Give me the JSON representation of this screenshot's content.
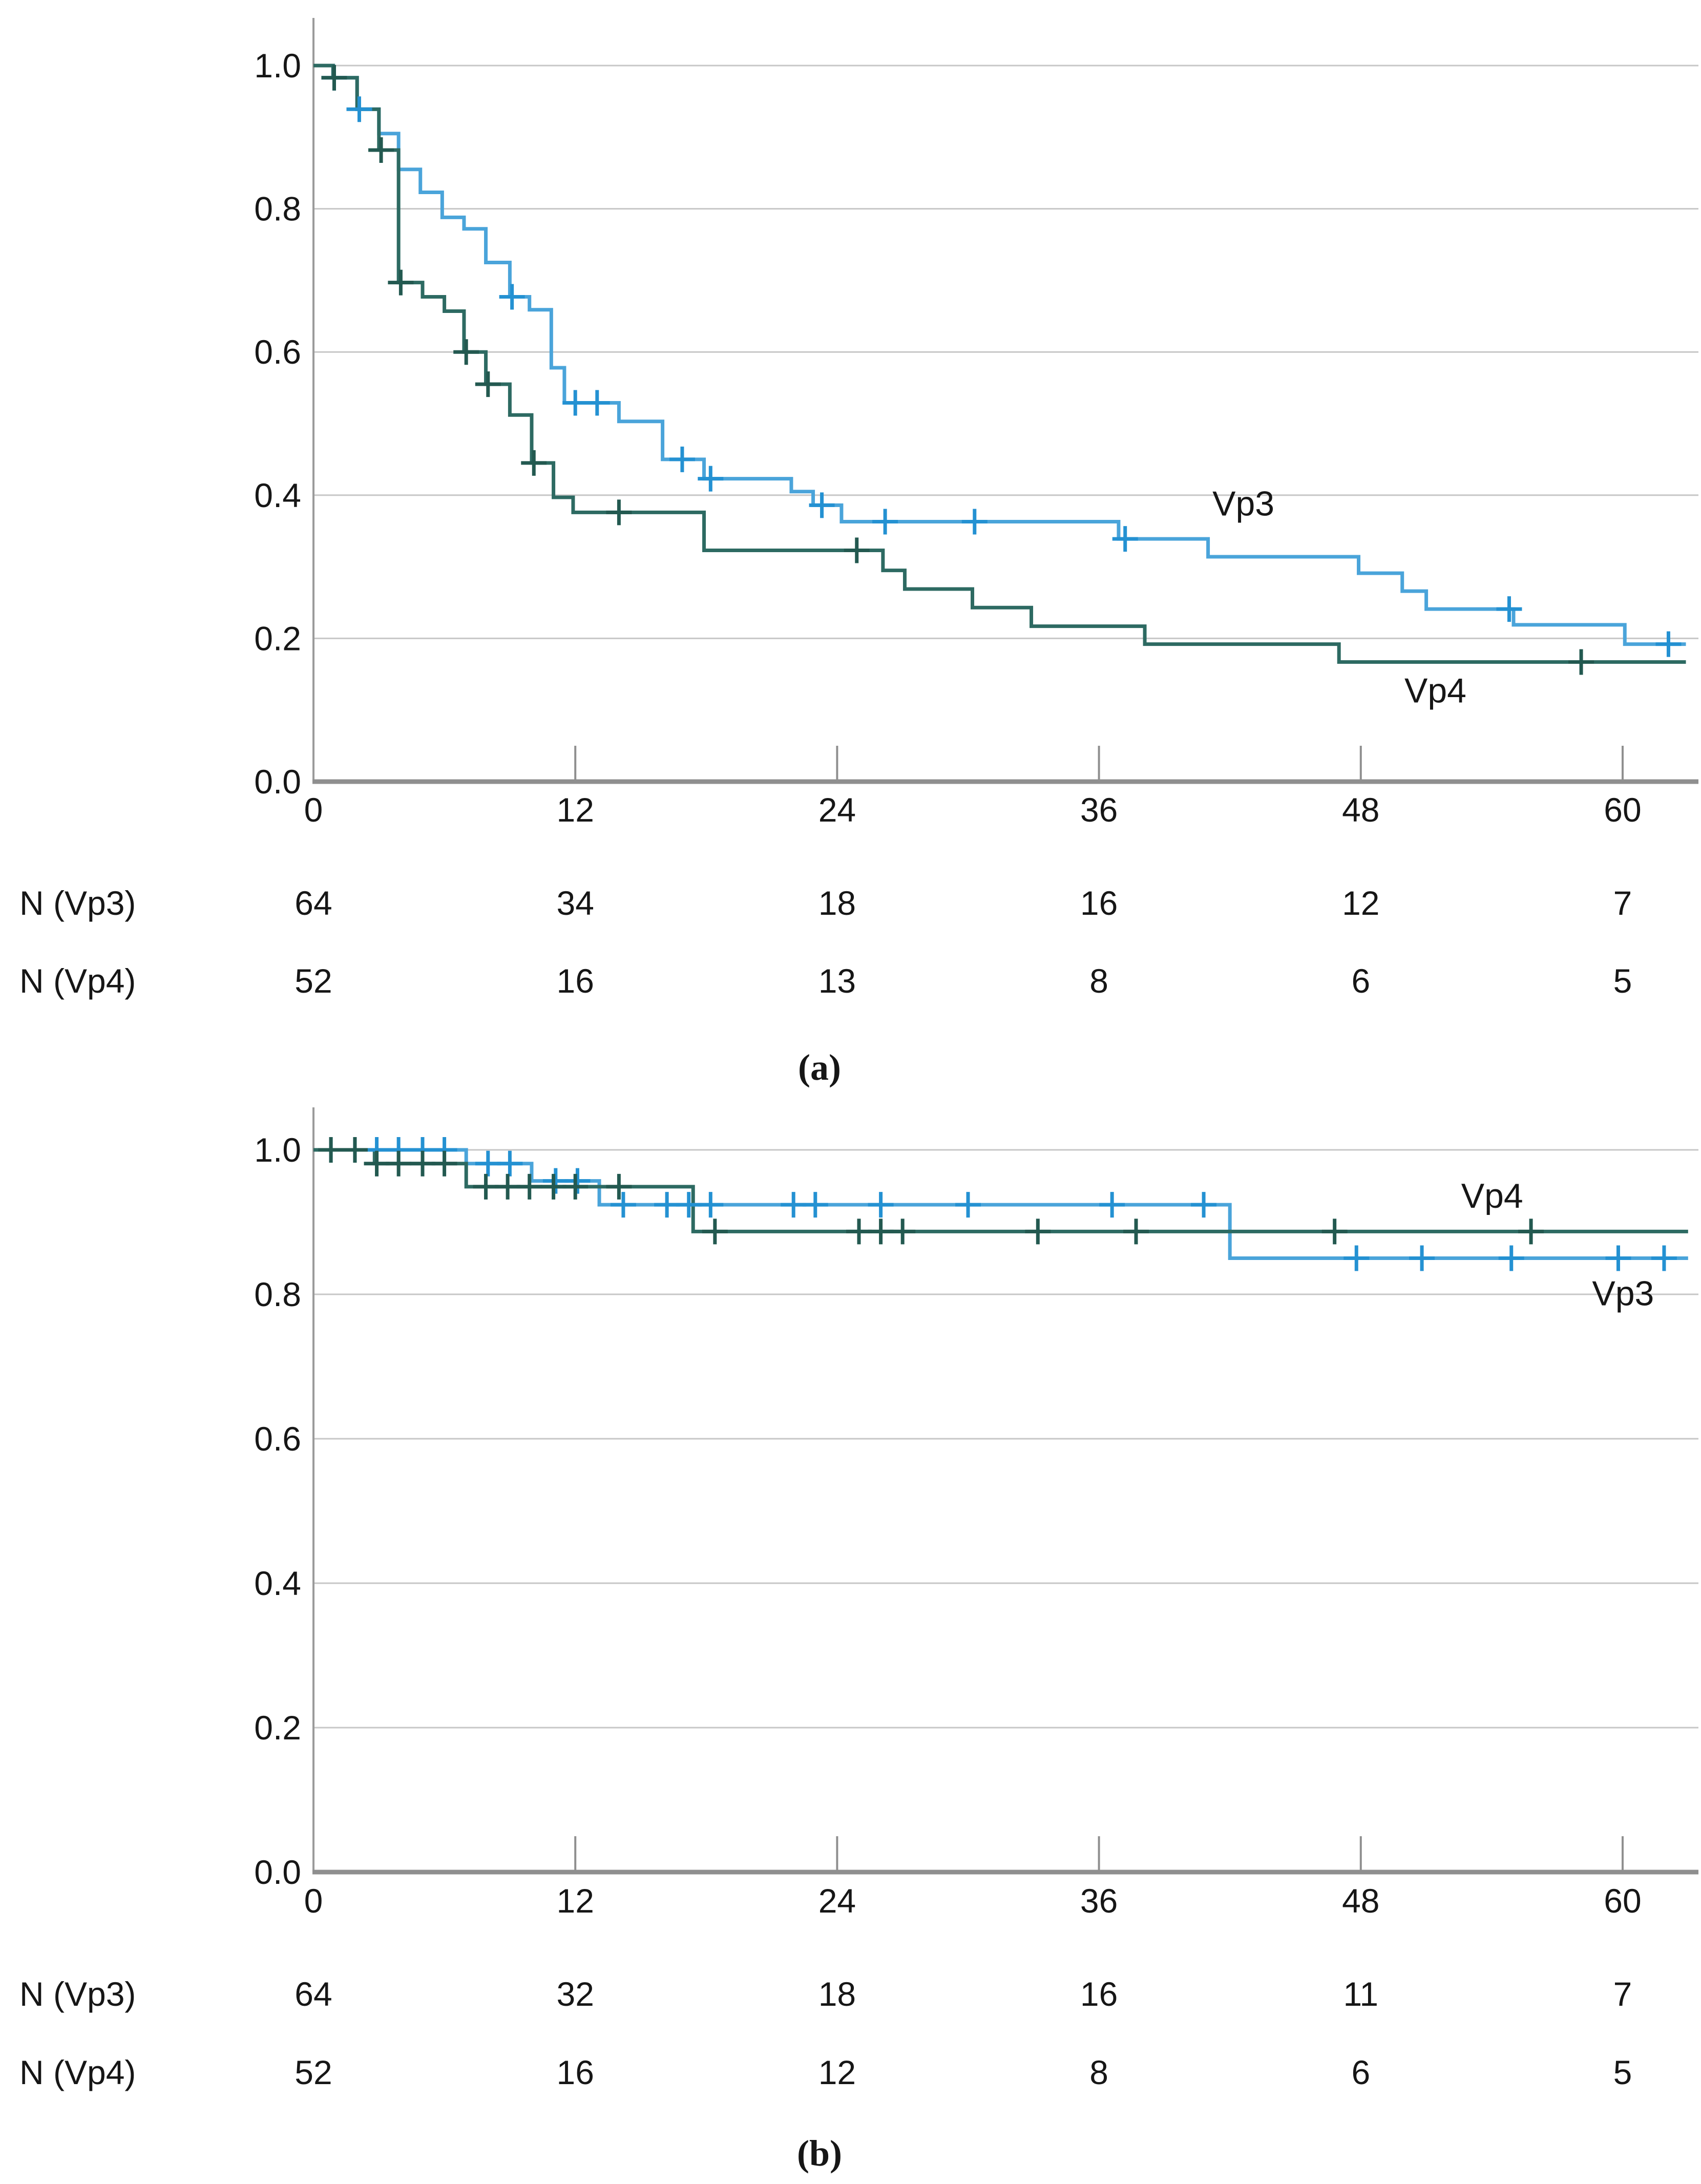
{
  "figure_caption_a": "(a)",
  "figure_caption_b": "(b)",
  "chart_data": [
    {
      "panel": "a",
      "type": "line",
      "subtype": "kaplan-meier-step",
      "caption": "(a)",
      "title": "",
      "xlabel": "",
      "ylabel": "",
      "xlim": [
        0,
        63
      ],
      "ylim": [
        0.0,
        1.0
      ],
      "grid": "horizontal",
      "x_ticks": [
        {
          "label": "0",
          "value": 0
        },
        {
          "label": "12",
          "value": 12
        },
        {
          "label": "24",
          "value": 24
        },
        {
          "label": "36",
          "value": 36
        },
        {
          "label": "48",
          "value": 48
        },
        {
          "label": "60",
          "value": 60
        }
      ],
      "y_ticks": [
        {
          "label": "1.0",
          "value": 1.0
        },
        {
          "label": "0.8",
          "value": 0.8
        },
        {
          "label": "0.6",
          "value": 0.6
        },
        {
          "label": "0.4",
          "value": 0.4
        },
        {
          "label": "0.2",
          "value": 0.2
        },
        {
          "label": "0.0",
          "value": 0.0
        }
      ],
      "series": [
        {
          "name": "Vp3",
          "color": "#4aa4da",
          "censor_color": "#2491d2",
          "end_month": 62.9,
          "label": {
            "text": "Vp3",
            "month": 41.2,
            "value": 0.388
          },
          "steps": [
            [
              0,
              1.0
            ],
            [
              0.9,
              0.983
            ],
            [
              2.0,
              0.939
            ],
            [
              3.0,
              0.905
            ],
            [
              3.9,
              0.855
            ],
            [
              4.9,
              0.823
            ],
            [
              5.9,
              0.788
            ],
            [
              6.9,
              0.772
            ],
            [
              7.9,
              0.725
            ],
            [
              9.0,
              0.677
            ],
            [
              9.9,
              0.659
            ],
            [
              10.9,
              0.578
            ],
            [
              11.5,
              0.529
            ],
            [
              14.0,
              0.503
            ],
            [
              16.0,
              0.45
            ],
            [
              17.9,
              0.423
            ],
            [
              21.9,
              0.405
            ],
            [
              22.9,
              0.386
            ],
            [
              24.2,
              0.363
            ],
            [
              36.9,
              0.339
            ],
            [
              41.0,
              0.314
            ],
            [
              47.9,
              0.291
            ],
            [
              49.9,
              0.266
            ],
            [
              51.0,
              0.241
            ],
            [
              55.0,
              0.219
            ],
            [
              60.1,
              0.192
            ]
          ],
          "censors": [
            [
              0.95,
              0.983
            ],
            [
              2.1,
              0.939
            ],
            [
              9.1,
              0.677
            ],
            [
              12.0,
              0.529
            ],
            [
              13.0,
              0.529
            ],
            [
              16.9,
              0.45
            ],
            [
              18.2,
              0.423
            ],
            [
              23.3,
              0.386
            ],
            [
              26.2,
              0.363
            ],
            [
              30.3,
              0.363
            ],
            [
              37.2,
              0.339
            ],
            [
              54.8,
              0.241
            ],
            [
              62.1,
              0.192
            ]
          ]
        },
        {
          "name": "Vp4",
          "color": "#2d6a62",
          "censor_color": "#235950",
          "end_month": 62.9,
          "label": {
            "text": "Vp4",
            "month": 50.0,
            "value": 0.127
          },
          "steps": [
            [
              0,
              1.0
            ],
            [
              0.9,
              0.983
            ],
            [
              2.0,
              0.939
            ],
            [
              3.0,
              0.882
            ],
            [
              3.9,
              0.697
            ],
            [
              5.0,
              0.677
            ],
            [
              6.0,
              0.657
            ],
            [
              6.9,
              0.6
            ],
            [
              7.9,
              0.555
            ],
            [
              9.0,
              0.512
            ],
            [
              10.0,
              0.445
            ],
            [
              11.0,
              0.397
            ],
            [
              11.9,
              0.376
            ],
            [
              17.9,
              0.323
            ],
            [
              26.1,
              0.295
            ],
            [
              27.1,
              0.269
            ],
            [
              30.2,
              0.243
            ],
            [
              32.9,
              0.217
            ],
            [
              38.1,
              0.192
            ],
            [
              47.0,
              0.167
            ]
          ],
          "censors": [
            [
              0.95,
              0.983
            ],
            [
              3.1,
              0.882
            ],
            [
              4.0,
              0.697
            ],
            [
              7.0,
              0.6
            ],
            [
              8.0,
              0.555
            ],
            [
              10.1,
              0.445
            ],
            [
              14.0,
              0.376
            ],
            [
              24.9,
              0.323
            ],
            [
              58.1,
              0.167
            ]
          ]
        }
      ],
      "risk_table": {
        "rows": [
          {
            "label": "N (Vp3)",
            "values": [
              "64",
              "34",
              "18",
              "16",
              "12",
              "7"
            ]
          },
          {
            "label": "N (Vp4)",
            "values": [
              "52",
              "16",
              "13",
              "8",
              "6",
              "5"
            ]
          }
        ]
      }
    },
    {
      "panel": "b",
      "type": "line",
      "subtype": "kaplan-meier-step",
      "caption": "(b)",
      "title": "",
      "xlabel": "",
      "ylabel": "",
      "xlim": [
        0,
        63
      ],
      "ylim": [
        0.0,
        1.0
      ],
      "grid": "horizontal",
      "x_ticks": [
        {
          "label": "0",
          "value": 0
        },
        {
          "label": "12",
          "value": 12
        },
        {
          "label": "24",
          "value": 24
        },
        {
          "label": "36",
          "value": 36
        },
        {
          "label": "48",
          "value": 48
        },
        {
          "label": "60",
          "value": 60
        }
      ],
      "y_ticks": [
        {
          "label": "1.0",
          "value": 1.0
        },
        {
          "label": "0.8",
          "value": 0.8
        },
        {
          "label": "0.6",
          "value": 0.6
        },
        {
          "label": "0.4",
          "value": 0.4
        },
        {
          "label": "0.2",
          "value": 0.2
        },
        {
          "label": "0.0",
          "value": 0.0
        }
      ],
      "series": [
        {
          "name": "Vp3",
          "color": "#4aa4da",
          "censor_color": "#2491d2",
          "end_month": 63.0,
          "label": {
            "text": "Vp3",
            "month": 58.6,
            "value": 0.801
          },
          "steps": [
            [
              0,
              1.0
            ],
            [
              7.0,
              0.981
            ],
            [
              10.0,
              0.957
            ],
            [
              13.1,
              0.924
            ],
            [
              42.0,
              0.85
            ]
          ],
          "censors": [
            [
              0.8,
              1.0
            ],
            [
              1.9,
              1.0
            ],
            [
              2.9,
              1.0
            ],
            [
              3.9,
              1.0
            ],
            [
              5.0,
              1.0
            ],
            [
              6.0,
              1.0
            ],
            [
              8.0,
              0.981
            ],
            [
              9.0,
              0.981
            ],
            [
              11.1,
              0.957
            ],
            [
              12.1,
              0.957
            ],
            [
              14.2,
              0.924
            ],
            [
              16.2,
              0.924
            ],
            [
              17.2,
              0.924
            ],
            [
              18.2,
              0.924
            ],
            [
              22.0,
              0.924
            ],
            [
              23.0,
              0.924
            ],
            [
              26.0,
              0.924
            ],
            [
              30.0,
              0.924
            ],
            [
              36.6,
              0.924
            ],
            [
              40.8,
              0.924
            ],
            [
              47.8,
              0.85
            ],
            [
              50.8,
              0.85
            ],
            [
              54.9,
              0.85
            ],
            [
              59.8,
              0.85
            ],
            [
              61.9,
              0.85
            ]
          ]
        },
        {
          "name": "Vp4",
          "color": "#2d6a62",
          "censor_color": "#235950",
          "end_month": 63.0,
          "label": {
            "text": "Vp4",
            "month": 52.6,
            "value": 0.936
          },
          "steps": [
            [
              0,
              1.0
            ],
            [
              2.8,
              0.981
            ],
            [
              7.0,
              0.949
            ],
            [
              17.4,
              0.887
            ]
          ],
          "censors": [
            [
              0.8,
              1.0
            ],
            [
              1.9,
              1.0
            ],
            [
              2.9,
              0.981
            ],
            [
              3.9,
              0.981
            ],
            [
              5.0,
              0.981
            ],
            [
              6.0,
              0.981
            ],
            [
              7.9,
              0.949
            ],
            [
              8.9,
              0.949
            ],
            [
              9.9,
              0.949
            ],
            [
              11.0,
              0.949
            ],
            [
              12.0,
              0.949
            ],
            [
              14.0,
              0.949
            ],
            [
              18.4,
              0.887
            ],
            [
              25.0,
              0.887
            ],
            [
              26.0,
              0.887
            ],
            [
              27.0,
              0.887
            ],
            [
              33.2,
              0.887
            ],
            [
              37.7,
              0.887
            ],
            [
              46.8,
              0.887
            ],
            [
              55.8,
              0.887
            ]
          ]
        }
      ],
      "risk_table": {
        "rows": [
          {
            "label": "N (Vp3)",
            "values": [
              "64",
              "32",
              "18",
              "16",
              "11",
              "7"
            ]
          },
          {
            "label": "N (Vp4)",
            "values": [
              "52",
              "16",
              "12",
              "8",
              "6",
              "5"
            ]
          }
        ]
      }
    }
  ],
  "colors": {
    "vp3_line": "#4aa4da",
    "vp4_line": "#2d6a62",
    "gridline": "#c7c7c7",
    "axis_spine": "#9b9b9b",
    "x_axis": "#8f8f8f",
    "text": "#161616"
  }
}
